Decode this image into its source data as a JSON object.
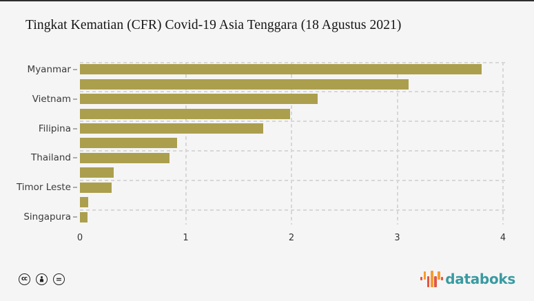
{
  "title": "Tingkat Kematian (CFR) Covid-19 Asia Tenggara (18 Agustus 2021)",
  "chart_data": {
    "type": "bar",
    "orientation": "horizontal",
    "title": "Tingkat Kematian (CFR) Covid-19 Asia Tenggara (18 Agustus 2021)",
    "categories": [
      "Myanmar",
      "",
      "Vietnam",
      "",
      "Filipina",
      "",
      "Thailand",
      "",
      "Timor Leste",
      "",
      "Singapura"
    ],
    "values": [
      3.8,
      3.11,
      2.25,
      1.99,
      1.73,
      0.92,
      0.85,
      0.32,
      0.3,
      0.08,
      0.07
    ],
    "x_ticks": [
      "0",
      "1",
      "2",
      "3",
      "4"
    ],
    "xlim": [
      0,
      4.02
    ],
    "bar_color": "#ab9f4e",
    "background": "#f5f5f5",
    "grid": "dashed",
    "grid_color": "#d7d7d7",
    "label_color": "#3a3a3a"
  },
  "footer": {
    "license_icons": [
      "cc-icon",
      "attribution-person-icon",
      "equal-nd-icon"
    ],
    "cc_glyph": "cc",
    "nd_glyph": "=",
    "brand": "databoks",
    "brand_color": "#399aa1",
    "brand_icon_orange": "#f59c2f",
    "brand_icon_red": "#e25544"
  }
}
